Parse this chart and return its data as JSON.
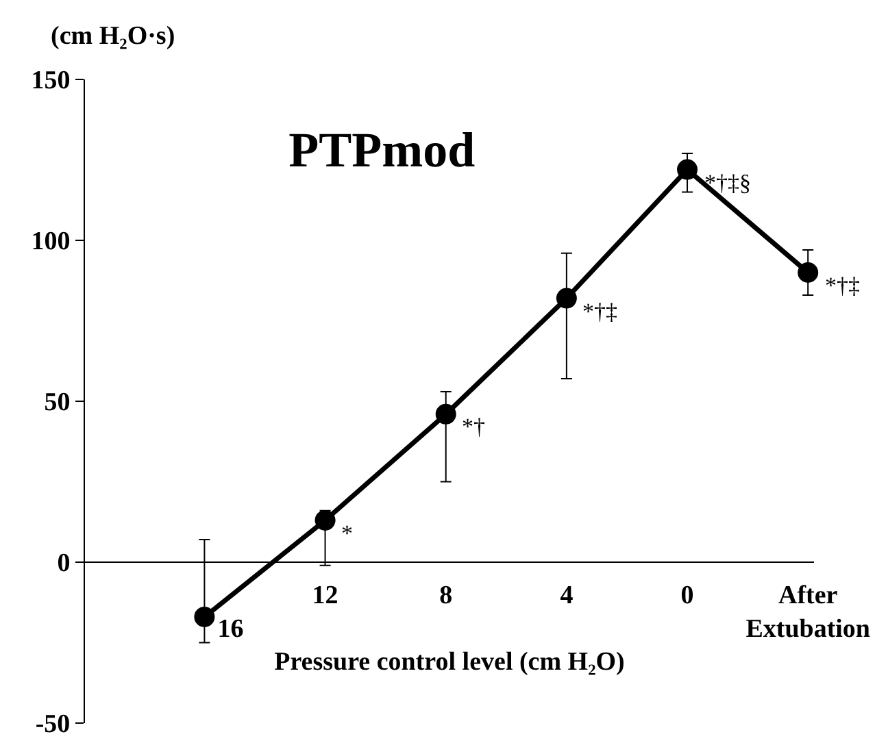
{
  "chart_data": {
    "type": "line",
    "title": "PTPmod",
    "ylabel": "(cm H₂O·s)",
    "xlabel": "Pressure control level (cm H₂O)",
    "categories": [
      "16",
      "12",
      "8",
      "4",
      "0",
      "After\nExtubation"
    ],
    "series": [
      {
        "color": "#000000",
        "values": [
          -17,
          13,
          46,
          82,
          122,
          90
        ],
        "errors": [
          [
            -25,
            7
          ],
          [
            -1,
            16
          ],
          [
            25,
            53
          ],
          [
            57,
            96
          ],
          [
            115,
            127
          ],
          [
            83,
            97
          ]
        ]
      }
    ],
    "ylim": [
      -50,
      150
    ],
    "yticks": [
      -50,
      0,
      50,
      100,
      150
    ],
    "grid": false,
    "marker": "circle",
    "line_style": "solid",
    "annotations": [
      {
        "text": "*",
        "x": "12",
        "y": 13
      },
      {
        "text": "*†",
        "x": "8",
        "y": 46
      },
      {
        "text": "*†‡",
        "x": "4",
        "y": 82
      },
      {
        "text": "*†‡§",
        "x": "0",
        "y": 122
      },
      {
        "text": "*†‡",
        "x": "After\nExtubation",
        "y": 90
      }
    ]
  }
}
